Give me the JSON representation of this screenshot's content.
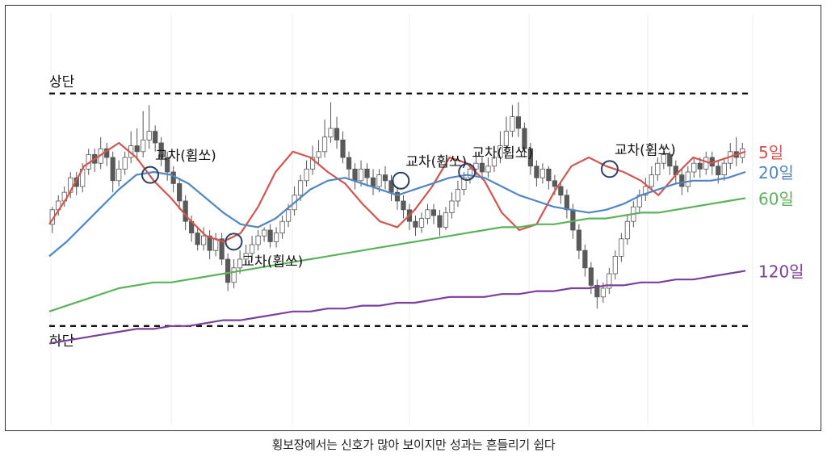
{
  "chart_data": {
    "type": "line",
    "title": "",
    "xlabel": "",
    "ylabel": "",
    "grid": true,
    "x": [
      0,
      5,
      10,
      15,
      20,
      25,
      30,
      35,
      40,
      45,
      50,
      55,
      60,
      65,
      70,
      75,
      80,
      85,
      90,
      95,
      100,
      105,
      110,
      115,
      120,
      125,
      130,
      135,
      140,
      145,
      150,
      155,
      160,
      165,
      170,
      175,
      180,
      185,
      190,
      195,
      200
    ],
    "series": [
      {
        "name": "5일",
        "color": "#d2564f",
        "values": [
          47,
          56,
          67,
          71,
          75,
          70,
          62,
          56,
          49,
          43,
          41,
          44,
          53,
          65,
          72,
          70,
          65,
          61,
          54,
          48,
          46,
          52,
          60,
          70,
          68,
          62,
          51,
          45,
          47,
          58,
          67,
          70,
          67,
          65,
          62,
          57,
          64,
          70,
          68,
          70,
          72
        ]
      },
      {
        "name": "20일",
        "color": "#4f86c3",
        "values": [
          36,
          41,
          47,
          53,
          59,
          64,
          65,
          64,
          61,
          56,
          51,
          47,
          46,
          49,
          54,
          59,
          62,
          63,
          61,
          59,
          57,
          59,
          61,
          63,
          64,
          63,
          60,
          57,
          55,
          53,
          52,
          51,
          52,
          54,
          57,
          59,
          61,
          62,
          62,
          63,
          65
        ]
      },
      {
        "name": "60일",
        "color": "#5bb25a",
        "values": [
          17,
          19,
          21,
          23,
          25,
          26,
          27,
          27,
          28,
          29,
          30,
          31,
          32,
          33,
          34,
          35,
          36,
          37,
          38,
          39,
          40,
          41,
          42,
          43,
          44,
          45,
          46,
          46,
          47,
          47,
          48,
          49,
          49,
          50,
          51,
          51,
          52,
          53,
          54,
          55,
          56
        ]
      },
      {
        "name": "120일",
        "color": "#7b3f9c",
        "values": [
          6,
          7,
          8,
          9,
          10,
          11,
          11,
          12,
          12,
          13,
          14,
          14,
          15,
          16,
          17,
          17,
          18,
          18,
          19,
          19,
          20,
          20,
          21,
          22,
          22,
          22,
          23,
          23,
          24,
          24,
          25,
          25,
          26,
          26,
          27,
          27,
          28,
          28,
          29,
          30,
          31
        ]
      }
    ],
    "candles": [
      [
        47,
        52,
        44,
        53
      ],
      [
        52,
        55,
        50,
        57
      ],
      [
        55,
        58,
        53,
        60
      ],
      [
        58,
        63,
        56,
        65
      ],
      [
        63,
        60,
        57,
        65
      ],
      [
        60,
        66,
        58,
        68
      ],
      [
        66,
        71,
        64,
        73
      ],
      [
        71,
        68,
        65,
        73
      ],
      [
        68,
        73,
        66,
        77
      ],
      [
        73,
        70,
        67,
        75
      ],
      [
        70,
        62,
        58,
        72
      ],
      [
        62,
        66,
        60,
        69
      ],
      [
        66,
        70,
        64,
        72
      ],
      [
        70,
        74,
        68,
        79
      ],
      [
        74,
        72,
        69,
        80
      ],
      [
        72,
        76,
        70,
        86
      ],
      [
        76,
        79,
        73,
        88
      ],
      [
        79,
        75,
        72,
        81
      ],
      [
        75,
        70,
        67,
        77
      ],
      [
        70,
        65,
        62,
        72
      ],
      [
        65,
        61,
        58,
        67
      ],
      [
        61,
        55,
        52,
        63
      ],
      [
        55,
        48,
        45,
        57
      ],
      [
        48,
        44,
        41,
        50
      ],
      [
        44,
        40,
        38,
        46
      ],
      [
        40,
        43,
        38,
        46
      ],
      [
        43,
        38,
        35,
        45
      ],
      [
        38,
        42,
        36,
        44
      ],
      [
        42,
        35,
        33,
        44
      ],
      [
        35,
        27,
        24,
        37
      ],
      [
        27,
        32,
        25,
        35
      ],
      [
        32,
        35,
        30,
        38
      ],
      [
        35,
        37,
        33,
        40
      ],
      [
        37,
        40,
        35,
        43
      ],
      [
        40,
        43,
        38,
        45
      ],
      [
        43,
        45,
        41,
        46
      ],
      [
        45,
        41,
        39,
        47
      ],
      [
        41,
        44,
        39,
        46
      ],
      [
        44,
        48,
        42,
        50
      ],
      [
        48,
        52,
        46,
        54
      ],
      [
        52,
        57,
        50,
        60
      ],
      [
        57,
        62,
        55,
        64
      ],
      [
        62,
        66,
        60,
        69
      ],
      [
        66,
        70,
        64,
        74
      ],
      [
        70,
        72,
        68,
        76
      ],
      [
        72,
        77,
        70,
        83
      ],
      [
        77,
        80,
        75,
        89
      ],
      [
        80,
        76,
        73,
        84
      ],
      [
        76,
        70,
        68,
        79
      ],
      [
        70,
        66,
        63,
        72
      ],
      [
        66,
        62,
        59,
        68
      ],
      [
        62,
        66,
        60,
        69
      ],
      [
        66,
        63,
        60,
        68
      ],
      [
        63,
        60,
        57,
        66
      ],
      [
        60,
        64,
        58,
        66
      ],
      [
        64,
        62,
        59,
        67
      ],
      [
        62,
        58,
        55,
        64
      ],
      [
        58,
        55,
        52,
        60
      ],
      [
        55,
        52,
        49,
        57
      ],
      [
        52,
        48,
        45,
        54
      ],
      [
        48,
        46,
        43,
        50
      ],
      [
        46,
        49,
        44,
        51
      ],
      [
        49,
        52,
        47,
        54
      ],
      [
        52,
        50,
        47,
        54
      ],
      [
        50,
        46,
        43,
        52
      ],
      [
        46,
        51,
        45,
        53
      ],
      [
        51,
        55,
        49,
        58
      ],
      [
        55,
        59,
        53,
        62
      ],
      [
        59,
        63,
        57,
        65
      ],
      [
        63,
        66,
        61,
        68
      ],
      [
        66,
        68,
        64,
        71
      ],
      [
        68,
        65,
        63,
        70
      ],
      [
        65,
        67,
        63,
        70
      ],
      [
        67,
        70,
        65,
        73
      ],
      [
        70,
        74,
        68,
        79
      ],
      [
        74,
        79,
        72,
        84
      ],
      [
        79,
        84,
        77,
        88
      ],
      [
        84,
        80,
        77,
        89
      ],
      [
        80,
        73,
        70,
        82
      ],
      [
        73,
        67,
        64,
        75
      ],
      [
        67,
        63,
        60,
        69
      ],
      [
        63,
        66,
        61,
        68
      ],
      [
        66,
        62,
        59,
        67
      ],
      [
        62,
        60,
        57,
        64
      ],
      [
        60,
        57,
        54,
        62
      ],
      [
        57,
        52,
        49,
        59
      ],
      [
        52,
        45,
        42,
        54
      ],
      [
        45,
        38,
        35,
        47
      ],
      [
        38,
        32,
        29,
        40
      ],
      [
        32,
        26,
        23,
        34
      ],
      [
        26,
        22,
        18,
        28
      ],
      [
        22,
        25,
        20,
        27
      ],
      [
        25,
        30,
        23,
        32
      ],
      [
        30,
        36,
        28,
        38
      ],
      [
        36,
        42,
        34,
        44
      ],
      [
        42,
        48,
        40,
        50
      ],
      [
        48,
        53,
        46,
        55
      ],
      [
        53,
        57,
        51,
        59
      ],
      [
        57,
        60,
        55,
        63
      ],
      [
        60,
        64,
        58,
        67
      ],
      [
        64,
        68,
        62,
        70
      ],
      [
        68,
        71,
        66,
        74
      ],
      [
        71,
        67,
        64,
        72
      ],
      [
        67,
        64,
        61,
        69
      ],
      [
        64,
        60,
        57,
        66
      ],
      [
        60,
        65,
        58,
        67
      ],
      [
        65,
        68,
        63,
        70
      ],
      [
        68,
        66,
        63,
        70
      ],
      [
        66,
        70,
        64,
        72
      ],
      [
        70,
        67,
        64,
        72
      ],
      [
        67,
        64,
        61,
        69
      ],
      [
        64,
        68,
        62,
        70
      ],
      [
        68,
        72,
        66,
        75
      ],
      [
        72,
        70,
        67,
        77
      ],
      [
        70,
        73,
        68,
        75
      ]
    ],
    "reference_lines": [
      {
        "label": "상단",
        "y": 92
      },
      {
        "label": "하단",
        "y": 12
      }
    ],
    "annotations": [
      {
        "label": "교차(휩쏘)",
        "x": 29,
        "y": 64
      },
      {
        "label": "교차(휩쏘)",
        "x": 53,
        "y": 41
      },
      {
        "label": "교차(휩쏘)",
        "x": 101,
        "y": 62
      },
      {
        "label": "교차(휩쏘)",
        "x": 120,
        "y": 65
      },
      {
        "label": "교차(휩쏘)",
        "x": 161,
        "y": 66
      }
    ],
    "ylim": [
      0,
      100
    ],
    "xlim": [
      0,
      200
    ]
  },
  "caption": "횡보장에서는 신호가 많아 보이지만 성과는 흔들리기 쉽다"
}
